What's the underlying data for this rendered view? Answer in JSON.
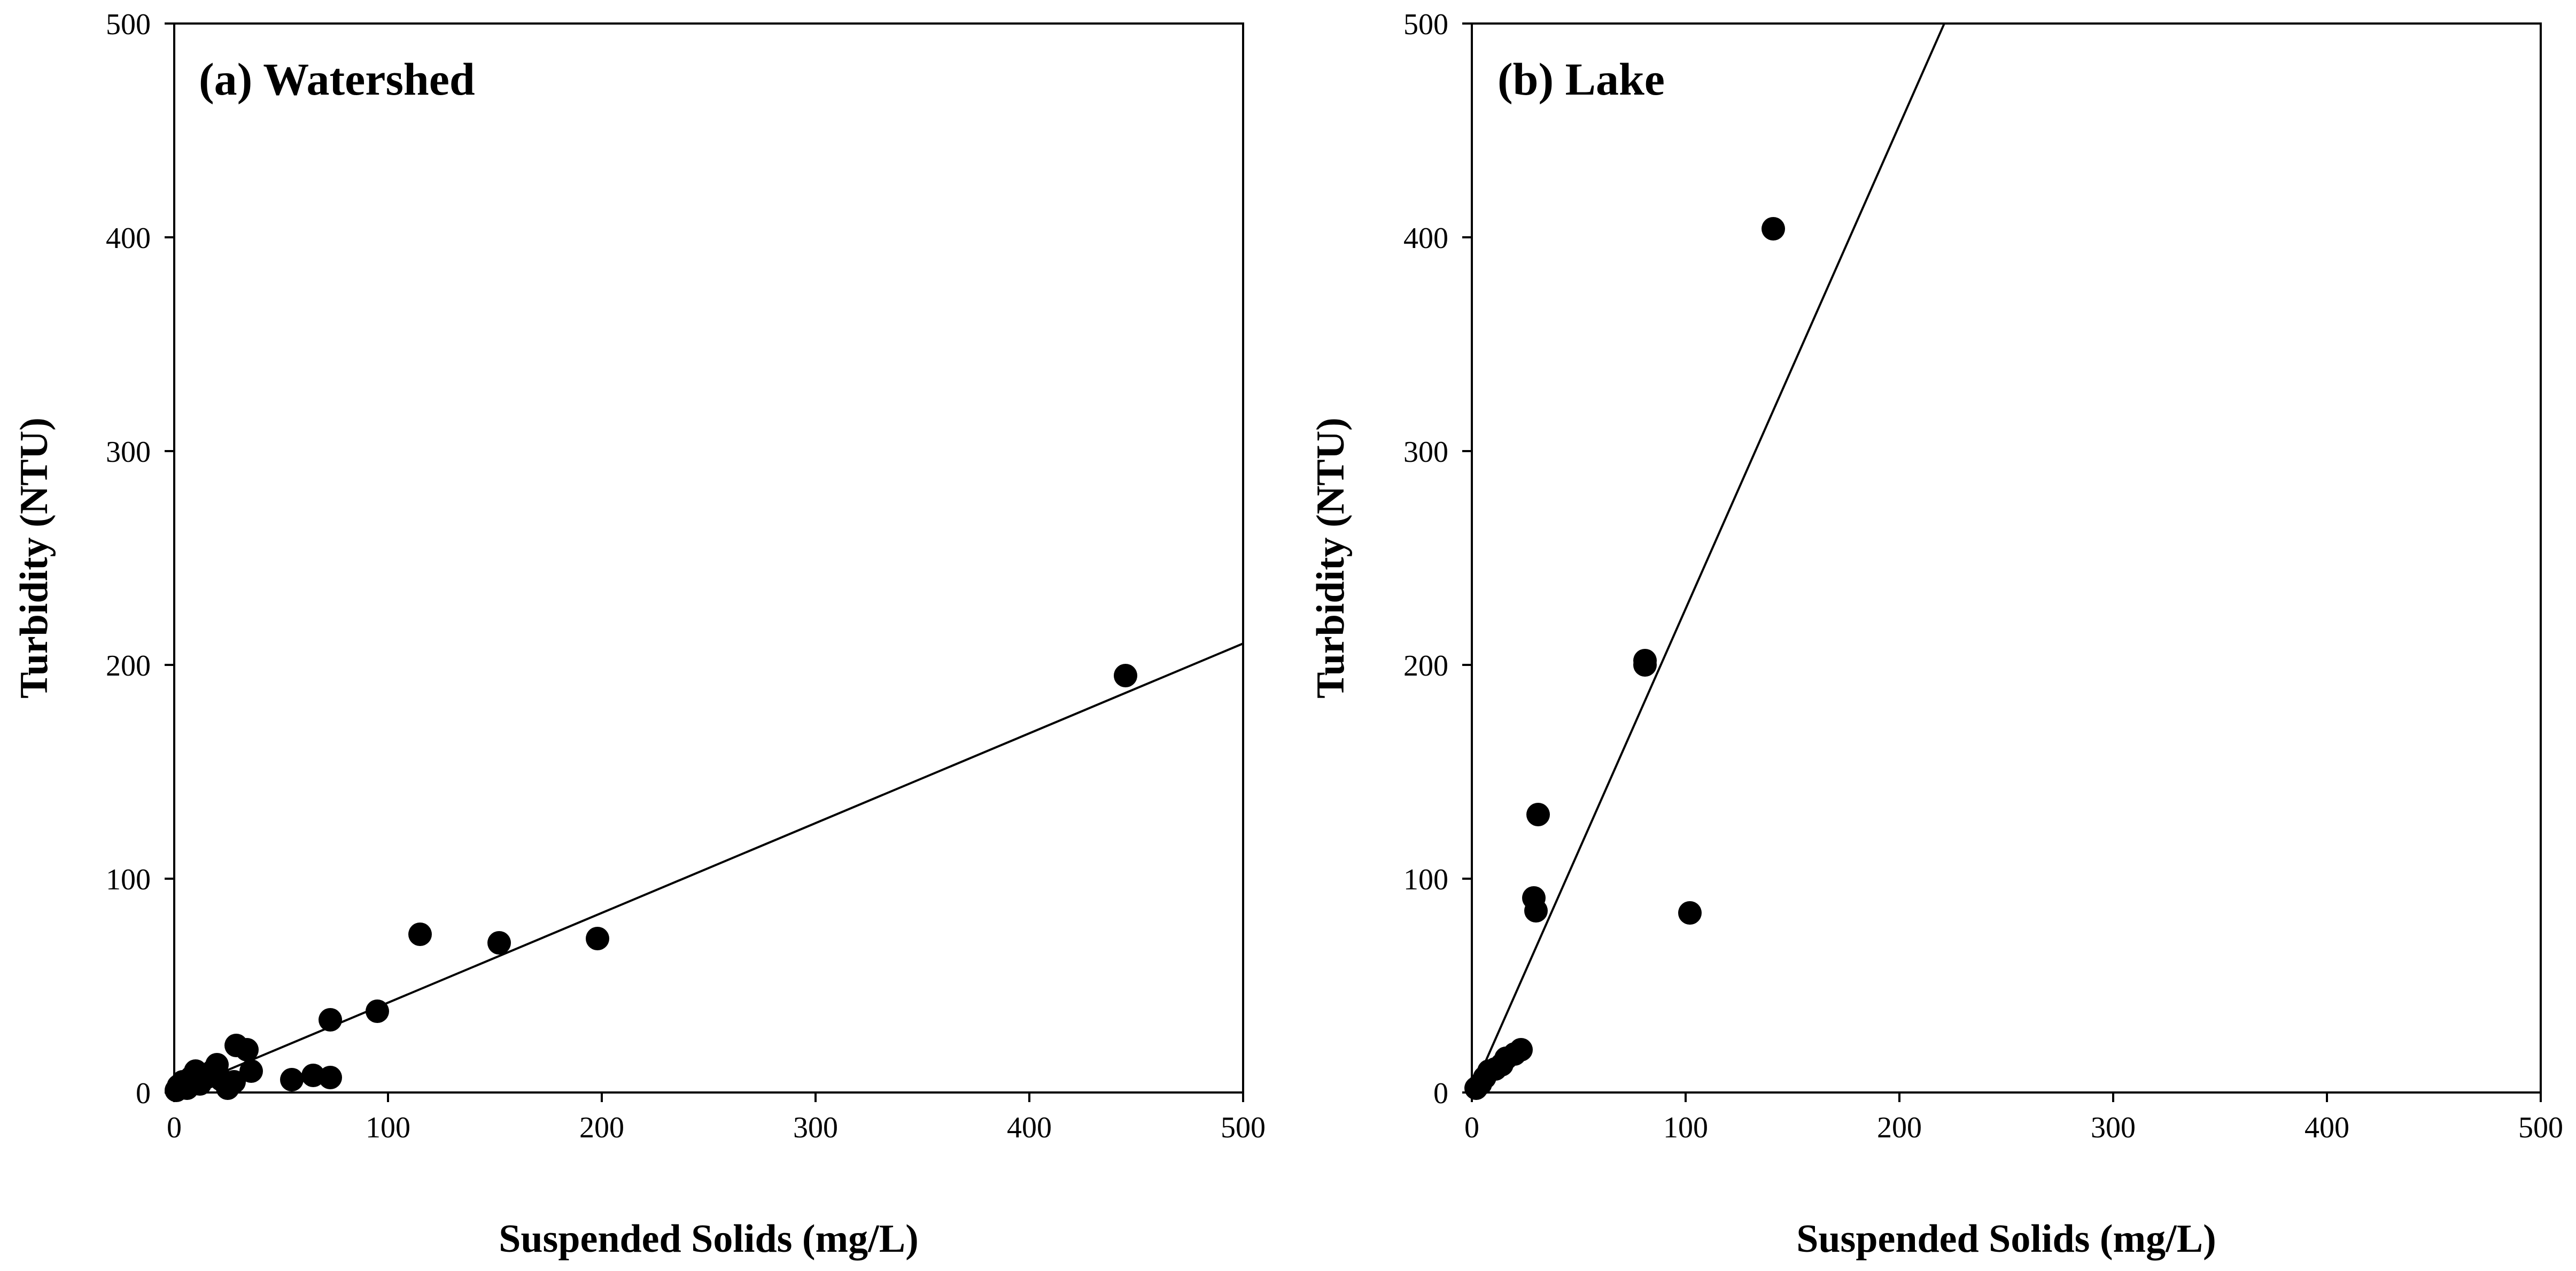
{
  "colors": {
    "marker": "#000000",
    "line": "#000000",
    "background": "#ffffff"
  },
  "chart_data": [
    {
      "type": "scatter",
      "title": "(a) Watershed",
      "xlabel": "Suspended Solids (mg/L)",
      "ylabel": "Turbidity (NTU)",
      "xlim": [
        0,
        500
      ],
      "ylim": [
        0,
        500
      ],
      "xticks": [
        0,
        100,
        200,
        300,
        400,
        500
      ],
      "yticks": [
        0,
        100,
        200,
        300,
        400,
        500
      ],
      "grid": false,
      "legend": false,
      "points": [
        [
          1,
          1
        ],
        [
          2,
          3
        ],
        [
          4,
          5
        ],
        [
          6,
          2
        ],
        [
          8,
          7
        ],
        [
          10,
          10
        ],
        [
          12,
          4
        ],
        [
          15,
          7
        ],
        [
          18,
          10
        ],
        [
          20,
          13
        ],
        [
          22,
          6
        ],
        [
          25,
          2
        ],
        [
          28,
          5
        ],
        [
          29,
          22
        ],
        [
          34,
          20
        ],
        [
          36,
          10
        ],
        [
          55,
          6
        ],
        [
          65,
          8
        ],
        [
          73,
          7
        ],
        [
          73,
          34
        ],
        [
          95,
          38
        ],
        [
          115,
          74
        ],
        [
          152,
          70
        ],
        [
          198,
          72
        ],
        [
          445,
          195
        ]
      ],
      "fit_line": {
        "x": [
          0,
          500
        ],
        "y": [
          0,
          210
        ]
      }
    },
    {
      "type": "scatter",
      "title": "(b) Lake",
      "xlabel": "Suspended Solids (mg/L)",
      "ylabel": "Turbidity (NTU)",
      "xlim": [
        0,
        500
      ],
      "ylim": [
        0,
        500
      ],
      "xticks": [
        0,
        100,
        200,
        300,
        400,
        500
      ],
      "yticks": [
        0,
        100,
        200,
        300,
        400,
        500
      ],
      "grid": false,
      "legend": false,
      "points": [
        [
          2,
          2
        ],
        [
          4,
          4
        ],
        [
          6,
          7
        ],
        [
          8,
          10
        ],
        [
          11,
          11
        ],
        [
          14,
          13
        ],
        [
          16,
          16
        ],
        [
          20,
          18
        ],
        [
          23,
          20
        ],
        [
          29,
          91
        ],
        [
          30,
          85
        ],
        [
          31,
          130
        ],
        [
          81,
          202
        ],
        [
          81,
          200
        ],
        [
          102,
          84
        ],
        [
          141,
          404
        ]
      ],
      "fit_line": {
        "x": [
          0,
          221
        ],
        "y": [
          0,
          500
        ]
      }
    }
  ]
}
